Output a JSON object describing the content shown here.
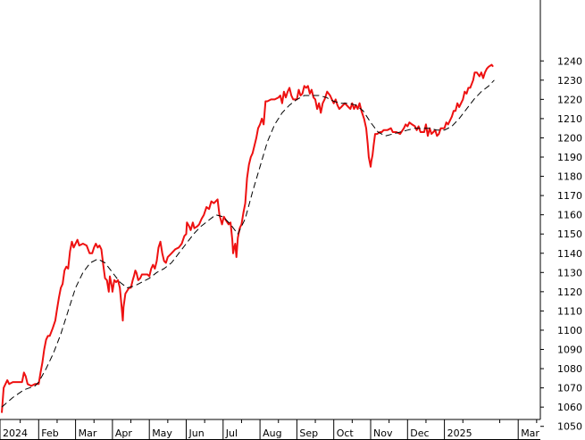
{
  "chart_data": {
    "type": "line",
    "title": "",
    "xlabel": "",
    "ylabel": "",
    "ylim": [
      1045,
      1243
    ],
    "y_ticks": [
      1050,
      1060,
      1070,
      1080,
      1090,
      1100,
      1110,
      1120,
      1130,
      1140,
      1150,
      1160,
      1170,
      1180,
      1190,
      1200,
      1210,
      1220,
      1230,
      1240
    ],
    "y_axis_side": "right",
    "grid": false,
    "legend": "none",
    "x_ticks": [
      {
        "label": "2024",
        "month": 0
      },
      {
        "label": "Feb",
        "month": 1
      },
      {
        "label": "Mar",
        "month": 2
      },
      {
        "label": "Apr",
        "month": 3
      },
      {
        "label": "May",
        "month": 4
      },
      {
        "label": "Jun",
        "month": 5
      },
      {
        "label": "Jul",
        "month": 6
      },
      {
        "label": "Aug",
        "month": 7
      },
      {
        "label": "Sep",
        "month": 8
      },
      {
        "label": "Oct",
        "month": 9
      },
      {
        "label": "Nov",
        "month": 10
      },
      {
        "label": "Dec",
        "month": 11
      },
      {
        "label": "2025",
        "month": 12
      },
      {
        "label": "Mar",
        "month": 14
      }
    ],
    "x_range_months": [
      0,
      14.6
    ],
    "series": [
      {
        "color": "#ee1111",
        "style": "solid",
        "points": [
          [
            0.0,
            1057
          ],
          [
            0.05,
            1070
          ],
          [
            0.1,
            1072
          ],
          [
            0.15,
            1074
          ],
          [
            0.2,
            1072
          ],
          [
            0.3,
            1073
          ],
          [
            0.45,
            1073
          ],
          [
            0.55,
            1073
          ],
          [
            0.6,
            1078
          ],
          [
            0.65,
            1076
          ],
          [
            0.7,
            1072
          ],
          [
            0.8,
            1071
          ],
          [
            0.9,
            1072
          ],
          [
            1.0,
            1072
          ],
          [
            1.05,
            1078
          ],
          [
            1.1,
            1083
          ],
          [
            1.15,
            1090
          ],
          [
            1.2,
            1095
          ],
          [
            1.25,
            1097
          ],
          [
            1.3,
            1097
          ],
          [
            1.38,
            1101
          ],
          [
            1.45,
            1105
          ],
          [
            1.5,
            1111
          ],
          [
            1.55,
            1117
          ],
          [
            1.6,
            1122
          ],
          [
            1.65,
            1124
          ],
          [
            1.7,
            1131
          ],
          [
            1.75,
            1133
          ],
          [
            1.8,
            1132
          ],
          [
            1.85,
            1141
          ],
          [
            1.9,
            1146
          ],
          [
            1.95,
            1143
          ],
          [
            2.0,
            1145
          ],
          [
            2.05,
            1147
          ],
          [
            2.1,
            1144
          ],
          [
            2.2,
            1145
          ],
          [
            2.3,
            1144
          ],
          [
            2.38,
            1140
          ],
          [
            2.45,
            1140
          ],
          [
            2.5,
            1143
          ],
          [
            2.55,
            1145
          ],
          [
            2.6,
            1143
          ],
          [
            2.65,
            1144
          ],
          [
            2.7,
            1142
          ],
          [
            2.75,
            1134
          ],
          [
            2.8,
            1127
          ],
          [
            2.85,
            1126
          ],
          [
            2.9,
            1120
          ],
          [
            2.93,
            1128
          ],
          [
            2.98,
            1123
          ],
          [
            3.0,
            1120
          ],
          [
            3.05,
            1126
          ],
          [
            3.1,
            1125
          ],
          [
            3.15,
            1126
          ],
          [
            3.2,
            1122
          ],
          [
            3.25,
            1112
          ],
          [
            3.28,
            1105
          ],
          [
            3.3,
            1112
          ],
          [
            3.35,
            1119
          ],
          [
            3.45,
            1122
          ],
          [
            3.5,
            1122
          ],
          [
            3.55,
            1126
          ],
          [
            3.58,
            1128
          ],
          [
            3.62,
            1131
          ],
          [
            3.65,
            1130
          ],
          [
            3.7,
            1126
          ],
          [
            3.75,
            1127
          ],
          [
            3.8,
            1129
          ],
          [
            3.9,
            1129
          ],
          [
            3.95,
            1129
          ],
          [
            4.0,
            1128
          ],
          [
            4.05,
            1132
          ],
          [
            4.1,
            1134
          ],
          [
            4.15,
            1132
          ],
          [
            4.2,
            1136
          ],
          [
            4.25,
            1143
          ],
          [
            4.3,
            1146
          ],
          [
            4.35,
            1140
          ],
          [
            4.4,
            1136
          ],
          [
            4.45,
            1135
          ],
          [
            4.5,
            1138
          ],
          [
            4.6,
            1140
          ],
          [
            4.7,
            1142
          ],
          [
            4.8,
            1143
          ],
          [
            4.88,
            1145
          ],
          [
            4.95,
            1149
          ],
          [
            5.0,
            1150
          ],
          [
            5.02,
            1156
          ],
          [
            5.08,
            1154
          ],
          [
            5.12,
            1152
          ],
          [
            5.18,
            1156
          ],
          [
            5.22,
            1153
          ],
          [
            5.3,
            1154
          ],
          [
            5.35,
            1155
          ],
          [
            5.42,
            1158
          ],
          [
            5.48,
            1160
          ],
          [
            5.55,
            1164
          ],
          [
            5.62,
            1163
          ],
          [
            5.68,
            1167
          ],
          [
            5.75,
            1166
          ],
          [
            5.85,
            1168
          ],
          [
            5.9,
            1160
          ],
          [
            5.97,
            1155
          ],
          [
            6.02,
            1159
          ],
          [
            6.08,
            1157
          ],
          [
            6.15,
            1155
          ],
          [
            6.2,
            1156
          ],
          [
            6.25,
            1147
          ],
          [
            6.27,
            1140
          ],
          [
            6.3,
            1143
          ],
          [
            6.33,
            1145
          ],
          [
            6.36,
            1138
          ],
          [
            6.4,
            1148
          ],
          [
            6.45,
            1153
          ],
          [
            6.5,
            1155
          ],
          [
            6.55,
            1161
          ],
          [
            6.6,
            1166
          ],
          [
            6.65,
            1179
          ],
          [
            6.7,
            1186
          ],
          [
            6.75,
            1190
          ],
          [
            6.8,
            1192
          ],
          [
            6.85,
            1196
          ],
          [
            6.9,
            1200
          ],
          [
            6.95,
            1205
          ],
          [
            7.0,
            1207
          ],
          [
            7.05,
            1210
          ],
          [
            7.1,
            1207
          ],
          [
            7.15,
            1219
          ],
          [
            7.2,
            1219
          ],
          [
            7.3,
            1220
          ],
          [
            7.4,
            1220
          ],
          [
            7.5,
            1221
          ],
          [
            7.55,
            1222
          ],
          [
            7.6,
            1218
          ],
          [
            7.65,
            1224
          ],
          [
            7.7,
            1221
          ],
          [
            7.75,
            1224
          ],
          [
            7.8,
            1226
          ],
          [
            7.85,
            1222
          ],
          [
            7.9,
            1220
          ],
          [
            8.0,
            1220
          ],
          [
            8.05,
            1225
          ],
          [
            8.1,
            1222
          ],
          [
            8.15,
            1223
          ],
          [
            8.2,
            1227
          ],
          [
            8.25,
            1226
          ],
          [
            8.3,
            1227
          ],
          [
            8.35,
            1223
          ],
          [
            8.4,
            1225
          ],
          [
            8.45,
            1221
          ],
          [
            8.5,
            1220
          ],
          [
            8.55,
            1215
          ],
          [
            8.6,
            1218
          ],
          [
            8.65,
            1213
          ],
          [
            8.7,
            1218
          ],
          [
            8.75,
            1220
          ],
          [
            8.82,
            1224
          ],
          [
            8.9,
            1222
          ],
          [
            8.95,
            1220
          ],
          [
            9.0,
            1218
          ],
          [
            9.05,
            1220
          ],
          [
            9.1,
            1217
          ],
          [
            9.15,
            1215
          ],
          [
            9.2,
            1216
          ],
          [
            9.3,
            1218
          ],
          [
            9.4,
            1216
          ],
          [
            9.45,
            1215
          ],
          [
            9.5,
            1218
          ],
          [
            9.55,
            1215
          ],
          [
            9.6,
            1217
          ],
          [
            9.65,
            1215
          ],
          [
            9.7,
            1218
          ],
          [
            9.75,
            1214
          ],
          [
            9.82,
            1210
          ],
          [
            9.88,
            1205
          ],
          [
            9.92,
            1197
          ],
          [
            9.95,
            1190
          ],
          [
            10.0,
            1185
          ],
          [
            10.02,
            1188
          ],
          [
            10.05,
            1191
          ],
          [
            10.08,
            1196
          ],
          [
            10.12,
            1202
          ],
          [
            10.18,
            1202
          ],
          [
            10.25,
            1203
          ],
          [
            10.3,
            1203
          ],
          [
            10.35,
            1204
          ],
          [
            10.45,
            1204
          ],
          [
            10.55,
            1205
          ],
          [
            10.6,
            1203
          ],
          [
            10.7,
            1203
          ],
          [
            10.8,
            1202
          ],
          [
            10.9,
            1205
          ],
          [
            10.95,
            1207
          ],
          [
            11.0,
            1206
          ],
          [
            11.05,
            1208
          ],
          [
            11.12,
            1207
          ],
          [
            11.2,
            1206
          ],
          [
            11.25,
            1204
          ],
          [
            11.3,
            1206
          ],
          [
            11.35,
            1203
          ],
          [
            11.45,
            1203
          ],
          [
            11.5,
            1207
          ],
          [
            11.55,
            1201
          ],
          [
            11.6,
            1205
          ],
          [
            11.65,
            1202
          ],
          [
            11.7,
            1203
          ],
          [
            11.75,
            1204
          ],
          [
            11.8,
            1201
          ],
          [
            11.85,
            1202
          ],
          [
            11.9,
            1205
          ],
          [
            12.0,
            1205
          ],
          [
            12.05,
            1208
          ],
          [
            12.1,
            1207
          ],
          [
            12.15,
            1209
          ],
          [
            12.2,
            1211
          ],
          [
            12.25,
            1214
          ],
          [
            12.3,
            1214
          ],
          [
            12.35,
            1218
          ],
          [
            12.4,
            1216
          ],
          [
            12.5,
            1220
          ],
          [
            12.55,
            1224
          ],
          [
            12.6,
            1223
          ],
          [
            12.65,
            1226
          ],
          [
            12.7,
            1226
          ],
          [
            12.78,
            1230
          ],
          [
            12.82,
            1234
          ],
          [
            12.88,
            1234
          ],
          [
            12.95,
            1232
          ],
          [
            13.0,
            1234
          ],
          [
            13.05,
            1231
          ],
          [
            13.1,
            1234
          ],
          [
            13.15,
            1236
          ],
          [
            13.2,
            1237
          ],
          [
            13.28,
            1238
          ],
          [
            13.32,
            1237
          ]
        ]
      },
      {
        "color": "#000000",
        "style": "dashed",
        "points": [
          [
            0.0,
            1060
          ],
          [
            0.3,
            1065
          ],
          [
            0.6,
            1069
          ],
          [
            0.9,
            1071
          ],
          [
            1.0,
            1073
          ],
          [
            1.2,
            1080
          ],
          [
            1.4,
            1088
          ],
          [
            1.6,
            1098
          ],
          [
            1.8,
            1110
          ],
          [
            2.0,
            1122
          ],
          [
            2.2,
            1130
          ],
          [
            2.4,
            1135
          ],
          [
            2.6,
            1137
          ],
          [
            2.8,
            1135
          ],
          [
            3.0,
            1130
          ],
          [
            3.2,
            1125
          ],
          [
            3.4,
            1122
          ],
          [
            3.6,
            1123
          ],
          [
            3.8,
            1125
          ],
          [
            4.0,
            1127
          ],
          [
            4.2,
            1130
          ],
          [
            4.4,
            1132
          ],
          [
            4.6,
            1135
          ],
          [
            4.8,
            1140
          ],
          [
            5.0,
            1145
          ],
          [
            5.2,
            1150
          ],
          [
            5.4,
            1154
          ],
          [
            5.6,
            1157
          ],
          [
            5.8,
            1160
          ],
          [
            6.0,
            1159
          ],
          [
            6.2,
            1155
          ],
          [
            6.4,
            1150
          ],
          [
            6.6,
            1158
          ],
          [
            6.8,
            1172
          ],
          [
            7.0,
            1185
          ],
          [
            7.2,
            1198
          ],
          [
            7.4,
            1207
          ],
          [
            7.6,
            1213
          ],
          [
            7.8,
            1217
          ],
          [
            8.0,
            1220
          ],
          [
            8.2,
            1222
          ],
          [
            8.4,
            1222
          ],
          [
            8.6,
            1222
          ],
          [
            8.8,
            1221
          ],
          [
            9.0,
            1219
          ],
          [
            9.2,
            1218
          ],
          [
            9.4,
            1218
          ],
          [
            9.6,
            1217
          ],
          [
            9.8,
            1214
          ],
          [
            10.0,
            1208
          ],
          [
            10.2,
            1203
          ],
          [
            10.4,
            1201
          ],
          [
            10.6,
            1202
          ],
          [
            10.8,
            1203
          ],
          [
            11.0,
            1204
          ],
          [
            11.2,
            1205
          ],
          [
            11.4,
            1205
          ],
          [
            11.6,
            1205
          ],
          [
            11.8,
            1204
          ],
          [
            12.0,
            1204
          ],
          [
            12.2,
            1206
          ],
          [
            12.4,
            1210
          ],
          [
            12.6,
            1215
          ],
          [
            12.8,
            1220
          ],
          [
            13.0,
            1224
          ],
          [
            13.2,
            1227
          ],
          [
            13.35,
            1230
          ]
        ]
      }
    ]
  }
}
